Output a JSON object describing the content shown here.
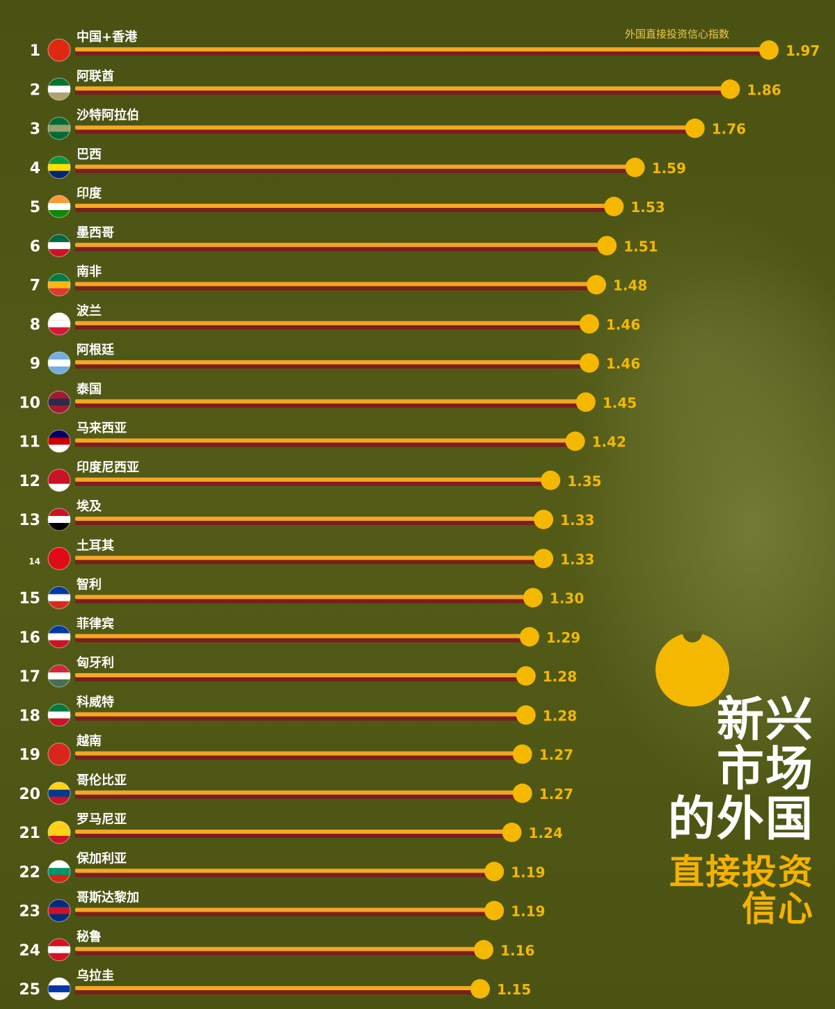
{
  "title_main": "新兴\n市场\n的外国",
  "title_sub": "直接投资\n信心",
  "colors": {
    "background": "#4f5714",
    "bar": "#f5a623",
    "bar_shadow": "#7a1f1f",
    "marker": "#f5b800",
    "value_text": "#f5b800",
    "label_text": "#ffffff"
  },
  "chart_data": {
    "type": "bar",
    "orientation": "horizontal",
    "title": "新兴市场的外国直接投资信心",
    "legend": "外国直接投资信心指数",
    "xlim": [
      0,
      2.0
    ],
    "grid": false,
    "ranks": [
      "1",
      "2",
      "3",
      "4",
      "5",
      "6",
      "7",
      "8",
      "9",
      "10",
      "11",
      "12",
      "13",
      "14",
      "15",
      "16",
      "17",
      "18",
      "19",
      "20",
      "21",
      "22",
      "23",
      "24",
      "25"
    ],
    "categories": [
      "中国+香港",
      "阿联酋",
      "沙特阿拉伯",
      "巴西",
      "印度",
      "墨西哥",
      "南非",
      "波兰",
      "阿根廷",
      "泰国",
      "马来西亚",
      "印度尼西亚",
      "埃及",
      "土耳其",
      "智利",
      "菲律宾",
      "匈牙利",
      "科威特",
      "越南",
      "哥伦比亚",
      "罗马尼亚",
      "保加利亚",
      "哥斯达黎加",
      "秘鲁",
      "乌拉圭"
    ],
    "values": [
      1.97,
      1.86,
      1.76,
      1.59,
      1.53,
      1.51,
      1.48,
      1.46,
      1.46,
      1.45,
      1.42,
      1.35,
      1.33,
      1.33,
      1.3,
      1.29,
      1.28,
      1.28,
      1.27,
      1.27,
      1.24,
      1.19,
      1.19,
      1.16,
      1.15
    ],
    "value_labels": [
      "1.97",
      "1.86",
      "1.76",
      "1.59",
      "1.53",
      "1.51",
      "1.48",
      "1.46",
      "1.46",
      "1.45",
      "1.42",
      "1.35",
      "1.33",
      "1.33",
      "1.30",
      "1.29",
      "1.28",
      "1.28",
      "1.27",
      "1.27",
      "1.24",
      "1.19",
      "1.19",
      "1.16",
      "1.15"
    ],
    "flag_colors": [
      [
        "#de2910",
        "#de2910",
        "#de2910"
      ],
      [
        "#00732f",
        "#ffffff",
        "#b0a070"
      ],
      [
        "#006c35",
        "#9aa06a",
        "#006c35"
      ],
      [
        "#009c3b",
        "#ffdf00",
        "#002776"
      ],
      [
        "#ff9933",
        "#ffffff",
        "#138808"
      ],
      [
        "#006847",
        "#ffffff",
        "#ce1126"
      ],
      [
        "#007a4d",
        "#ffb612",
        "#de3831"
      ],
      [
        "#ffffff",
        "#ffffff",
        "#dc143c"
      ],
      [
        "#74acdf",
        "#ffffff",
        "#74acdf"
      ],
      [
        "#a51931",
        "#2d2a4a",
        "#a51931"
      ],
      [
        "#010066",
        "#cc0001",
        "#ffffff"
      ],
      [
        "#ce1126",
        "#ce1126",
        "#ffffff"
      ],
      [
        "#ce1126",
        "#ffffff",
        "#000000"
      ],
      [
        "#e30a17",
        "#e30a17",
        "#e30a17"
      ],
      [
        "#0039a6",
        "#ffffff",
        "#d52b1e"
      ],
      [
        "#0038a8",
        "#ffffff",
        "#ce1126"
      ],
      [
        "#ce2939",
        "#ffffff",
        "#477050"
      ],
      [
        "#007a3d",
        "#ffffff",
        "#ce1126"
      ],
      [
        "#da251d",
        "#da251d",
        "#da251d"
      ],
      [
        "#fcd116",
        "#003893",
        "#ce1126"
      ],
      [
        "#fcd116",
        "#fcd116",
        "#ce1126"
      ],
      [
        "#ffffff",
        "#00966e",
        "#d62612"
      ],
      [
        "#002b7f",
        "#ce1126",
        "#002b7f"
      ],
      [
        "#d91023",
        "#ffffff",
        "#d91023"
      ],
      [
        "#ffffff",
        "#0038a8",
        "#ffffff"
      ]
    ]
  }
}
